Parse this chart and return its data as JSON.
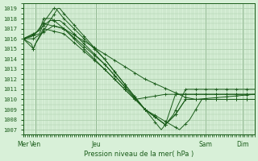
{
  "bg_color": "#d8f0d8",
  "grid_color": "#aaccaa",
  "line_color": "#1a5c1a",
  "ylabel": "Pression niveau de la mer( hPa )",
  "ylim": [
    1006.5,
    1019.5
  ],
  "yticks": [
    1007,
    1008,
    1009,
    1010,
    1011,
    1012,
    1013,
    1014,
    1015,
    1016,
    1017,
    1018,
    1019
  ],
  "x_day_labels": [
    "Mer",
    "Ven",
    "Jeu",
    "Sam",
    "Dim"
  ],
  "x_day_positions": [
    0,
    6,
    36,
    90,
    108
  ],
  "num_points": 115
}
